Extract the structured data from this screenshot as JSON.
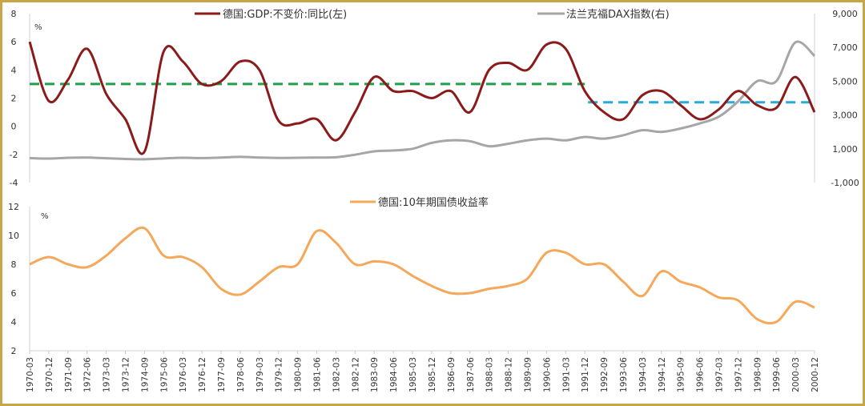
{
  "chart_data": [
    {
      "type": "line",
      "panel": "top",
      "y_unit_label": "%",
      "ylim_left": [
        -4,
        8
      ],
      "yticks_left": [
        8,
        6,
        4,
        2,
        0,
        -2,
        -4
      ],
      "ylim_right": [
        -1000,
        9000
      ],
      "yticks_right": [
        "9,000",
        "7,000",
        "5,000",
        "3,000",
        "1,000",
        "-1,000"
      ],
      "yticks_right_values": [
        9000,
        7000,
        5000,
        3000,
        1000,
        -1000
      ],
      "grid": false,
      "legend_placement": "top",
      "series": [
        {
          "name": "德国:GDP:不变价:同比(左)",
          "axis": "left",
          "color": "#8b1a1a",
          "values": [
            6.0,
            1.8,
            3.3,
            5.5,
            2.3,
            0.5,
            -1.8,
            5.3,
            4.6,
            3.0,
            3.2,
            4.6,
            4.0,
            0.4,
            0.2,
            0.5,
            -1.0,
            1.0,
            3.5,
            2.5,
            2.5,
            2.0,
            2.5,
            1.0,
            4.0,
            4.5,
            4.0,
            5.8,
            5.5,
            2.5,
            1.0,
            0.5,
            2.2,
            2.5,
            1.5,
            0.5,
            1.2,
            2.5,
            1.5,
            1.3,
            3.5,
            1.0
          ]
        },
        {
          "name": "法兰克福DAX指数(右)",
          "axis": "right",
          "color": "#a6a6a6",
          "values": [
            450,
            420,
            470,
            480,
            440,
            400,
            380,
            430,
            470,
            450,
            480,
            520,
            480,
            460,
            470,
            480,
            500,
            650,
            850,
            900,
            1000,
            1350,
            1500,
            1450,
            1150,
            1300,
            1500,
            1600,
            1500,
            1700,
            1600,
            1800,
            2100,
            2000,
            2200,
            2500,
            2900,
            3800,
            5000,
            5000,
            7300,
            6500
          ]
        }
      ],
      "reference_lines": [
        {
          "value": 3.0,
          "from": "1970-03",
          "to": "1991-12",
          "color": "#1fa04a",
          "style": "dashed"
        },
        {
          "value": 1.7,
          "from": "1991-12",
          "to": "2000-12",
          "color": "#29a8dc",
          "style": "dashed"
        }
      ]
    },
    {
      "type": "line",
      "panel": "bottom",
      "y_unit_label": "%",
      "ylim": [
        2,
        12
      ],
      "yticks": [
        12,
        10,
        8,
        6,
        4,
        2
      ],
      "grid": false,
      "legend_placement": "top",
      "series": [
        {
          "name": "德国:10年期国债收益率",
          "color": "#f5a85a",
          "values": [
            8.0,
            8.5,
            8.0,
            7.8,
            8.6,
            9.8,
            10.5,
            8.6,
            8.5,
            7.8,
            6.3,
            5.9,
            6.8,
            7.8,
            8.0,
            10.3,
            9.5,
            8.0,
            8.2,
            8.0,
            7.2,
            6.5,
            6.0,
            6.0,
            6.3,
            6.5,
            7.0,
            8.8,
            8.8,
            8.0,
            8.0,
            6.8,
            5.8,
            7.5,
            6.8,
            6.4,
            5.7,
            5.5,
            4.2,
            4.0,
            5.4,
            5.0
          ]
        }
      ]
    }
  ],
  "x_tick_labels": [
    "1970-03",
    "1970-12",
    "1971-09",
    "1972-06",
    "1973-03",
    "1973-12",
    "1974-09",
    "1975-06",
    "1976-03",
    "1976-12",
    "1977-09",
    "1978-06",
    "1979-03",
    "1979-12",
    "1980-09",
    "1981-06",
    "1982-03",
    "1982-12",
    "1983-09",
    "1984-06",
    "1985-03",
    "1985-12",
    "1986-09",
    "1987-06",
    "1988-03",
    "1988-12",
    "1989-09",
    "1990-06",
    "1991-03",
    "1991-12",
    "1992-09",
    "1993-06",
    "1994-03",
    "1994-12",
    "1995-09",
    "1996-06",
    "1997-03",
    "1997-12",
    "1998-09",
    "1999-06",
    "2000-03",
    "2000-12"
  ]
}
